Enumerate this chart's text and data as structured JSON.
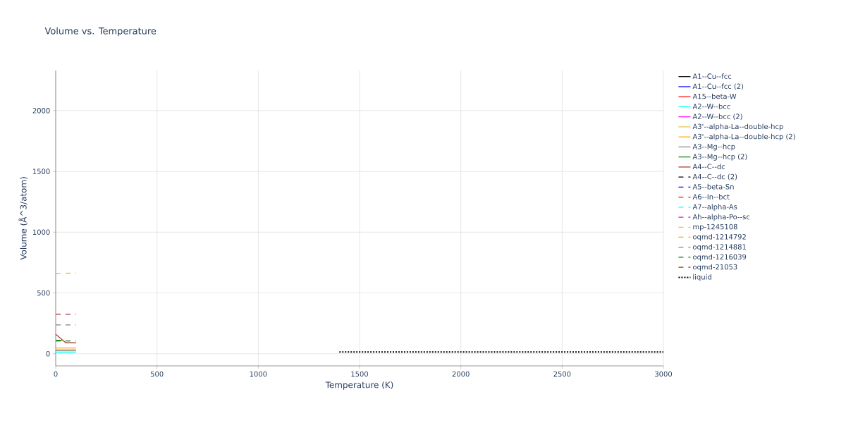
{
  "chart_data": {
    "type": "line",
    "title": "Volume vs. Temperature",
    "xlabel": "Temperature (K)",
    "ylabel": "Volume (Å^3/atom)",
    "xlim": [
      0,
      3000
    ],
    "ylim": [
      -100,
      2330
    ],
    "xticks": [
      0,
      500,
      1000,
      1500,
      2000,
      2500,
      3000
    ],
    "yticks": [
      0,
      500,
      1000,
      1500,
      2000
    ],
    "grid": true,
    "legend": "top right",
    "series": [
      {
        "name": "A1--Cu--fcc",
        "color": "#000000",
        "line_style": "solid"
      },
      {
        "name": "A1--Cu--fcc (2)",
        "color": "#0000ff",
        "line_style": "solid"
      },
      {
        "name": "A15--beta-W",
        "color": "#ff0000",
        "line_style": "solid"
      },
      {
        "name": "A2--W--bcc",
        "color": "#00ffff",
        "line_style": "solid",
        "x": [
          0,
          100
        ],
        "values": [
          12,
          12
        ]
      },
      {
        "name": "A2--W--bcc (2)",
        "color": "#ff00ff",
        "line_style": "solid"
      },
      {
        "name": "A3'--alpha-La--double-hcp",
        "color": "#e5c04a",
        "line_style": "solid",
        "x": [
          0,
          100
        ],
        "values": [
          35,
          35
        ]
      },
      {
        "name": "A3'--alpha-La--double-hcp (2)",
        "color": "#ffa500",
        "line_style": "solid",
        "x": [
          0,
          100
        ],
        "values": [
          47,
          47
        ]
      },
      {
        "name": "A3--Mg--hcp",
        "color": "#808080",
        "line_style": "solid",
        "x": [
          0,
          100
        ],
        "values": [
          24,
          24
        ]
      },
      {
        "name": "A3--Mg--hcp (2)",
        "color": "#008000",
        "line_style": "solid",
        "x": [
          0,
          30
        ],
        "values": [
          110,
          110
        ]
      },
      {
        "name": "A4--C--dc",
        "color": "#a52a2a",
        "line_style": "solid",
        "x": [
          0,
          50,
          100
        ],
        "values": [
          160,
          90,
          90
        ]
      },
      {
        "name": "A4--C--dc (2)",
        "color": "#000000",
        "line_style": "dashed"
      },
      {
        "name": "A5--beta-Sn",
        "color": "#0000ff",
        "line_style": "dashed"
      },
      {
        "name": "A6--In--bct",
        "color": "#ff0000",
        "line_style": "dashed"
      },
      {
        "name": "A7--alpha-As",
        "color": "#00ffff",
        "line_style": "dashed"
      },
      {
        "name": "Ah--alpha-Po--sc",
        "color": "#ff00ff",
        "line_style": "dashed"
      },
      {
        "name": "mp-1245108",
        "color": "#e5c04a",
        "line_style": "dashed"
      },
      {
        "name": "oqmd-1214792",
        "color": "#ffa500",
        "line_style": "dashed",
        "x": [
          0,
          100
        ],
        "values": [
          660,
          665
        ]
      },
      {
        "name": "oqmd-1214881",
        "color": "#808080",
        "line_style": "dashed",
        "x": [
          0,
          100
        ],
        "values": [
          237,
          237
        ]
      },
      {
        "name": "oqmd-1216039",
        "color": "#008000",
        "line_style": "dashed",
        "x": [
          0,
          100
        ],
        "values": [
          105,
          105
        ]
      },
      {
        "name": "oqmd-21053",
        "color": "#a52a2a",
        "line_style": "dashed",
        "x": [
          0,
          100
        ],
        "values": [
          325,
          325
        ]
      },
      {
        "name": "liquid",
        "color": "#000000",
        "line_style": "dotted",
        "x": [
          1400,
          3000
        ],
        "values": [
          15,
          15
        ]
      }
    ]
  }
}
